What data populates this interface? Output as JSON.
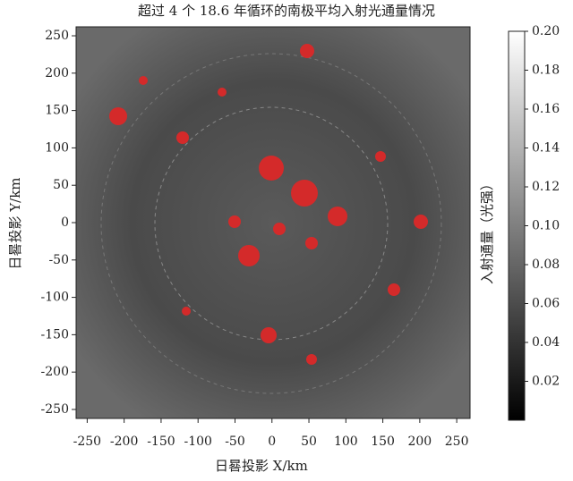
{
  "chart_data": {
    "type": "image",
    "title": "超过 4 个 18.6 年循环的南极平均入射光通量情况",
    "x_label": "日晷投影 X/km",
    "y_label": "日晷投影 Y/km",
    "colorbar_label": "入射通量（光强）",
    "xlim": [
      -265,
      268
    ],
    "ylim": [
      -262,
      262
    ],
    "xticks": [
      -250,
      -200,
      -150,
      -100,
      -50,
      0,
      50,
      100,
      150,
      200,
      250
    ],
    "yticks": [
      -250,
      -200,
      -150,
      -100,
      -50,
      0,
      50,
      100,
      150,
      200,
      250
    ],
    "clim": [
      0,
      0.2
    ],
    "cticks": [
      0.02,
      0.04,
      0.06,
      0.08,
      {
        "value": 0.1,
        "label": "0.10"
      },
      0.12,
      0.14,
      0.16,
      0.18,
      {
        "value": 0.2,
        "label": "0.20"
      }
    ]
  }
}
